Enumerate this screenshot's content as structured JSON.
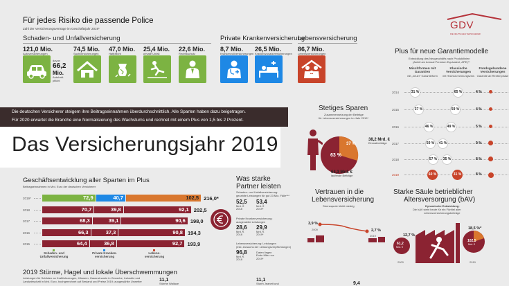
{
  "header": {
    "title": "Für jedes Risiko die passende Police",
    "subtitle": "Zahl der Versicherungsverträge im Geschäftsjahr 2019*"
  },
  "logo": {
    "name": "GDV",
    "tagline": "DIE DEUTSCHEN VERSICHERER"
  },
  "sections": {
    "schaden": "Schaden- und Unfallversicherung",
    "kranken": "Private Krankenversicherung",
    "leben": "Lebensversicherung"
  },
  "contracts": [
    {
      "value": "121,0 Mio.",
      "label": "Autoversicherungen"
    },
    {
      "value": "74,5 Mio.",
      "label": "Sachversicherungen"
    },
    {
      "value": "47,0 Mio.",
      "label": "Haftpflicht"
    },
    {
      "value": "25,4 Mio.",
      "label": "private Unfall"
    },
    {
      "value": "22,6 Mio.",
      "label": "Rechtsschutz"
    },
    {
      "value": "8,7 Mio.",
      "label": "Krankenvollversicherungen"
    },
    {
      "value": "26,5 Mio.",
      "label": "Krankenzusatzversicherungen"
    },
    {
      "value": "86,7 Mio.",
      "label": "Lebensversicherungen"
    }
  ],
  "auto_detail": {
    "prefix": "davon",
    "value": "66,2",
    "unit": "Mio.",
    "label1": "Autohaft-",
    "label2": "pflicht"
  },
  "banner": {
    "line1": "Die deutschen Versicherer steigern ihre Beitragseinnahmen überdurchschnittlich. Alle Sparten haben dazu beigetragen.",
    "line2": "Für 2020 erwartet die Branche eine Normalisierung des Wachstums und rechnet mit einem Plus von 1,5 bis 2 Prozent."
  },
  "main_title": "Das Versicherungsjahr 2019",
  "garantie": {
    "title": "Plus für neue Garantiemodelle",
    "subtitle1": "Entwicklung des Neugeschäfts nach Produktlinien",
    "subtitle2": "(Anteil am Annual Premium Equivalent, APE)**",
    "col1": "Mischformen mit Garantien",
    "col1b": "mit „neuer“ Garantieform",
    "col2": "Klassische Versicherungen",
    "col2b": "mit Höchst-rechnungszins",
    "col3": "Fondsgebundene Versicherungen",
    "col3b": "Garantie ab Rentenphase",
    "rows": [
      {
        "year": "2014",
        "a": "31 %",
        "b": "65 %",
        "c": "4 %"
      },
      {
        "year": "2015",
        "a": "37 %",
        "b": "59 %",
        "c": "4 %"
      },
      {
        "year": "2016",
        "a": "46 %",
        "b": "49 %",
        "c": "5 %"
      },
      {
        "year": "2017",
        "a": "50 %",
        "b": "41 %",
        "c": "9 %"
      },
      {
        "year": "2018",
        "a": "57 %",
        "b": "35 %",
        "c": "8 %"
      },
      {
        "year": "2019",
        "a": "60 %",
        "b": "31 %",
        "c": "8 %"
      }
    ]
  },
  "sparen": {
    "title": "Stetiges Sparen",
    "sub1": "Zusammensetzung der Beiträge",
    "sub2": "für Lebensversicherungen im Jahr 2019*",
    "big_pct": "63 %",
    "small_pct": "37 %",
    "einmal_val": "38,2 Mrd. €",
    "einmal_label": "Einmalbeiträge",
    "laufend_val": "64,3 Mrd. €",
    "laufend_label": "laufende Beiträge"
  },
  "geschaeft": {
    "title": "Geschäftsentwicklung aller Sparten im Plus",
    "subtitle": "Beitragseinnahmen in Mrd. Euro der deutschen Versicherer",
    "legend": [
      "Schaden- und Unfallversicherung",
      "Private Kranken-versicherung",
      "Lebens-versicherung"
    ]
  },
  "chart_data": {
    "type": "bar",
    "stacked": true,
    "orientation": "horizontal",
    "categories": [
      "2019*",
      "2018",
      "2017",
      "2016",
      "2015"
    ],
    "series": [
      {
        "name": "Schaden- und Unfallversicherung",
        "values": [
          72.9,
          70.7,
          68.3,
          66.3,
          64.4
        ],
        "labels": [
          "72,9",
          "70,7",
          "68,3",
          "66,3",
          "64,4"
        ]
      },
      {
        "name": "Private Krankenversicherung",
        "values": [
          40.7,
          39.8,
          39.1,
          37.3,
          36.8
        ],
        "labels": [
          "40,7",
          "39,8",
          "39,1",
          "37,3",
          "36,8"
        ]
      },
      {
        "name": "Lebensversicherung",
        "values": [
          102.5,
          92.1,
          90.6,
          90.8,
          92.7
        ],
        "labels": [
          "102,5",
          "92,1",
          "90,6",
          "90,8",
          "92,7"
        ]
      }
    ],
    "totals": [
      "216,0*",
      "202,5",
      "198,0",
      "194,3",
      "193,9"
    ],
    "title": "Geschäftsentwicklung aller Sparten im Plus",
    "xlabel": "",
    "ylabel": "Beitragseinnahmen in Mrd. Euro"
  },
  "partner": {
    "title1": "Was starke",
    "title2": "Partner leisten",
    "g1_title": "Schaden- und Unfallversicherung:",
    "g1_sub": "gezahlte Leistungen für gut 23 Mio. Fälle***",
    "g1_a": "52,5",
    "g1_b": "53,4",
    "g2_title": "Private Krankenversicherung:",
    "g2_sub": "ausgezahlte Leistungen",
    "g2_a": "28,6",
    "g2_b": "29,9",
    "g3_title": "Lebensversicherung: Leistungen",
    "g3_sub": "(inkl. Zuwachs der Leistungsverpflichtungen)",
    "g3_a": "96,8",
    "g3_b_note1": "Daten liegen",
    "g3_b_note2": "Ende März vor",
    "unit": "Mrd. €",
    "y_a": "2018",
    "y_b": "2019*"
  },
  "vertrauen": {
    "title1": "Vertrauen in die",
    "title2": "Lebensversicherung",
    "sub": "Stornoquote bleibt niedrig",
    "v_start": "3,9 %",
    "y_start": "2009",
    "v_end": "2,7 %",
    "y_end": "2019"
  },
  "bav": {
    "title1": "Starke Säule betrieblicher",
    "title2": "Altersversorgung (bAV)",
    "sub1": "Dynamische Entwicklung:",
    "sub2": "Die bAV steht heute für ein Fünftel aller",
    "sub3": "Lebensversicherungsbeiträge",
    "p1": "12,7 %",
    "p2": "18,5 %*",
    "v1": "61,2",
    "v1u": "Mrd. €",
    "v2": "102,5",
    "v2u": "Mrd. €",
    "y1": "2000",
    "y2": "2019"
  },
  "stuerme": {
    "title": "2019 Stürme, Hagel und lokale Überschwemmungen",
    "sub1": "Leistungen für Schäden an Kraftfahrzeugen, Häusern, Hausrat sowie in Gewerbe, Industrie und",
    "sub2": "Landwirtschaft in Mrd. Euro, hochgerechnet auf Bestand und Preise 2019; ausgewählte Unwetter",
    "v1": "11,1",
    "l1": "Stürme Wallace",
    "v2": "11,1",
    "l2": "Sturm Jeanett und",
    "v3": "9,4"
  }
}
